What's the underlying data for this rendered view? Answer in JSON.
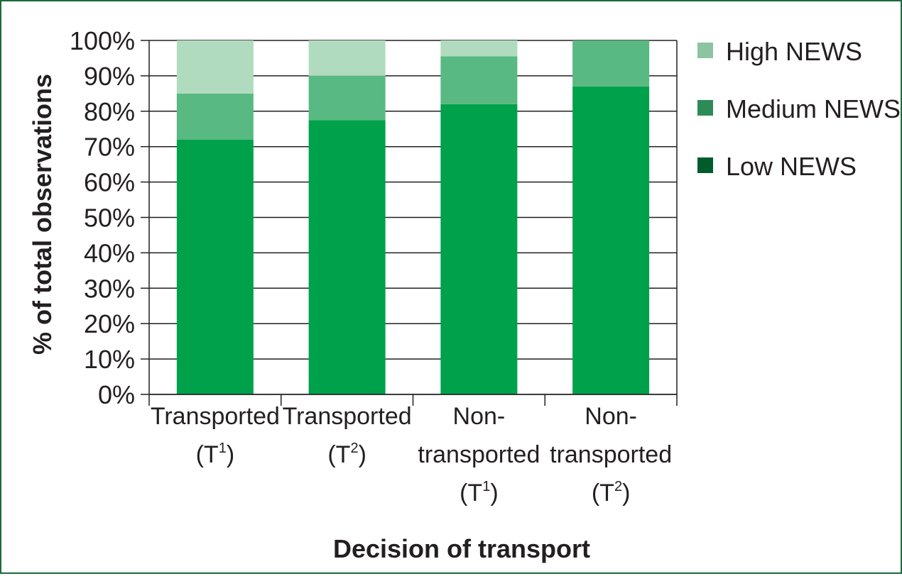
{
  "chart_data": {
    "type": "bar",
    "stacked": true,
    "title": "",
    "xlabel": "Decision of transport",
    "ylabel": "% of total observations",
    "ylim": [
      0,
      100
    ],
    "y_ticks": [
      "0%",
      "10%",
      "20%",
      "30%",
      "40%",
      "50%",
      "60%",
      "70%",
      "80%",
      "90%",
      "100%"
    ],
    "grid": "horizontal",
    "legend_position": "right",
    "categories": [
      {
        "lines": [
          "Transported"
        ],
        "group": "T",
        "sup": "1"
      },
      {
        "lines": [
          "Transported"
        ],
        "group": "T",
        "sup": "2"
      },
      {
        "lines": [
          "Non-",
          "transported"
        ],
        "group": "T",
        "sup": "1"
      },
      {
        "lines": [
          "Non-",
          "transported"
        ],
        "group": "T",
        "sup": "2"
      }
    ],
    "series": [
      {
        "name": "Low NEWS",
        "values": [
          72,
          77.5,
          82,
          87
        ],
        "color": "#00a14b",
        "legend_color": "#005c2b"
      },
      {
        "name": "Medium NEWS",
        "values": [
          13,
          12.5,
          13.5,
          13
        ],
        "color": "#58b982",
        "legend_color": "#2e8b57"
      },
      {
        "name": "High NEWS",
        "values": [
          15,
          10,
          4.5,
          0
        ],
        "color": "#b0dbbe",
        "legend_color": "#8cc4a2"
      }
    ],
    "legend_order": [
      "High NEWS",
      "Medium NEWS",
      "Low NEWS"
    ]
  }
}
